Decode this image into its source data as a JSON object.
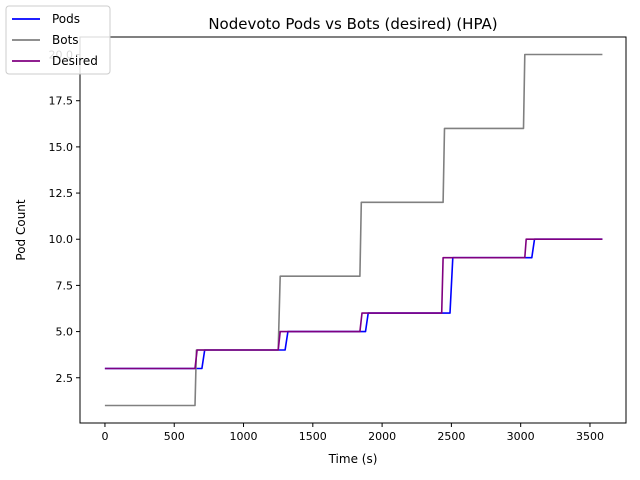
{
  "chart_data": {
    "type": "line",
    "title": "Nodevoto Pods vs Bots (desired)  (HPA)",
    "xlabel": "Time (s)",
    "ylabel": "Pod Count",
    "xlim": [
      -180,
      3760
    ],
    "ylim": [
      0.05,
      20.95
    ],
    "x_ticks": [
      0,
      500,
      1000,
      1500,
      2000,
      2500,
      3000,
      3500
    ],
    "y_ticks": [
      2.5,
      5.0,
      7.5,
      10.0,
      12.5,
      15.0,
      17.5,
      20.0
    ],
    "y_tick_labels": [
      "2.5",
      "5.0",
      "7.5",
      "10.0",
      "12.5",
      "15.0",
      "17.5",
      "20.0"
    ],
    "grid": false,
    "legend_position": "top-left",
    "series": [
      {
        "name": "Pods",
        "color": "#0000ff",
        "x": [
          0,
          700,
          720,
          1300,
          1320,
          1880,
          1900,
          2490,
          2510,
          3080,
          3100,
          3590
        ],
        "y": [
          3,
          3,
          4,
          4,
          5,
          5,
          6,
          6,
          9,
          9,
          10,
          10
        ]
      },
      {
        "name": "Bots",
        "color": "#808080",
        "x": [
          0,
          650,
          660,
          1250,
          1265,
          1840,
          1850,
          2440,
          2450,
          3020,
          3030,
          3590
        ],
        "y": [
          1,
          1,
          4,
          4,
          8,
          8,
          12,
          12,
          16,
          16,
          20,
          20
        ]
      },
      {
        "name": "Desired",
        "color": "#800080",
        "x": [
          0,
          650,
          665,
          1250,
          1265,
          1840,
          1855,
          2430,
          2440,
          3030,
          3040,
          3590
        ],
        "y": [
          3,
          3,
          4,
          4,
          5,
          5,
          6,
          6,
          9,
          9,
          10,
          10
        ]
      }
    ]
  }
}
